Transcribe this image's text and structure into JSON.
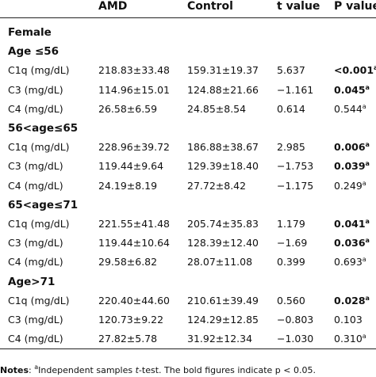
{
  "headers": [
    "",
    "AMD",
    "Control",
    "t value",
    "P value"
  ],
  "rows": [
    {
      "kind": "group",
      "label": "Female"
    },
    {
      "kind": "group",
      "label": "Age ≤56"
    },
    {
      "kind": "data",
      "label": "C1q (mg/dL)",
      "amd": "218.83±33.48",
      "control": "159.31±19.37",
      "t": "5.637",
      "p": "<0.001",
      "p_bold": true,
      "p_sup": "a"
    },
    {
      "kind": "data",
      "label": "C3 (mg/dL)",
      "amd": "114.96±15.01",
      "control": "124.88±21.66",
      "t": "−1.161",
      "p": "0.045",
      "p_bold": true,
      "p_sup": "a"
    },
    {
      "kind": "data",
      "label": "C4 (mg/dL)",
      "amd": "26.58±6.59",
      "control": "24.85±8.54",
      "t": "0.614",
      "p": "0.544",
      "p_bold": false,
      "p_sup": "a"
    },
    {
      "kind": "group",
      "label": "56<age≤65"
    },
    {
      "kind": "data",
      "label": "C1q (mg/dL)",
      "amd": "228.96±39.72",
      "control": "186.88±38.67",
      "t": "2.985",
      "p": "0.006",
      "p_bold": true,
      "p_sup": "a"
    },
    {
      "kind": "data",
      "label": "C3 (mg/dL)",
      "amd": "119.44±9.64",
      "control": "129.39±18.40",
      "t": "−1.753",
      "p": "0.039",
      "p_bold": true,
      "p_sup": "a"
    },
    {
      "kind": "data",
      "label": "C4 (mg/dL)",
      "amd": "24.19±8.19",
      "control": "27.72±8.42",
      "t": "−1.175",
      "p": "0.249",
      "p_bold": false,
      "p_sup": "a"
    },
    {
      "kind": "group",
      "label": "65<age≤71"
    },
    {
      "kind": "data",
      "label": "C1q (mg/dL)",
      "amd": "221.55±41.48",
      "control": "205.74±35.83",
      "t": "1.179",
      "p": "0.041",
      "p_bold": true,
      "p_sup": "a"
    },
    {
      "kind": "data",
      "label": "C3 (mg/dL)",
      "amd": "119.44±10.64",
      "control": "128.39±12.40",
      "t": "−1.69",
      "p": "0.036",
      "p_bold": true,
      "p_sup": "a"
    },
    {
      "kind": "data",
      "label": "C4 (mg/dL)",
      "amd": "29.58±6.82",
      "control": "28.07±11.08",
      "t": "0.399",
      "p": "0.693",
      "p_bold": false,
      "p_sup": "a"
    },
    {
      "kind": "group",
      "label": "Age>71"
    },
    {
      "kind": "data",
      "label": "C1q (mg/dL)",
      "amd": "220.40±44.60",
      "control": "210.61±39.49",
      "t": "0.560",
      "p": "0.028",
      "p_bold": true,
      "p_sup": "a"
    },
    {
      "kind": "data",
      "label": "C3 (mg/dL)",
      "amd": "120.73±9.22",
      "control": "124.29±12.85",
      "t": "−0.803",
      "p": "0.103",
      "p_bold": false,
      "p_sup": ""
    },
    {
      "kind": "data",
      "label": "C4 (mg/dL)",
      "amd": "27.82±5.78",
      "control": "31.92±12.34",
      "t": "−1.030",
      "p": "0.310",
      "p_bold": false,
      "p_sup": "a"
    }
  ],
  "notes": {
    "label": "Notes",
    "sup": "a",
    "text_before_italic": "Independent samples ",
    "italic": "t",
    "text_after_italic": "-test. The bold figures indicate p < 0.05."
  }
}
